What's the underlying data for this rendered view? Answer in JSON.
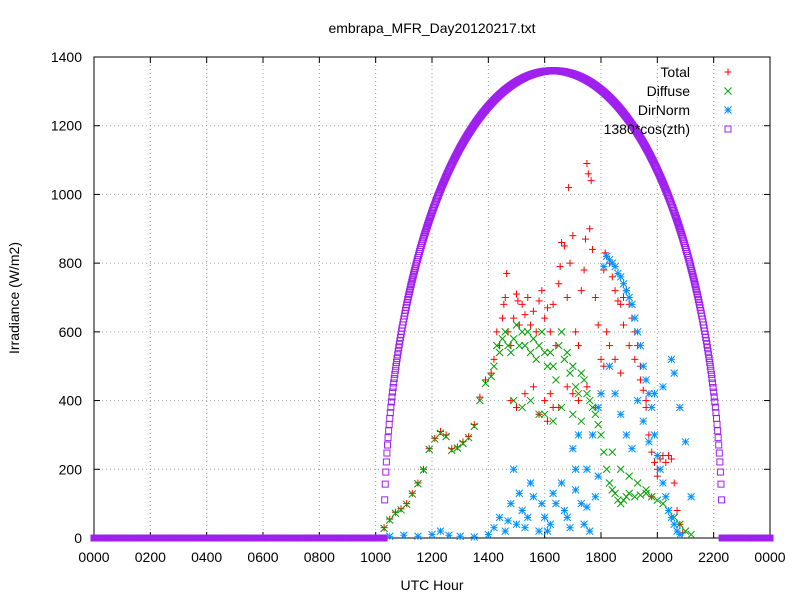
{
  "chart_data": {
    "type": "scatter",
    "title": "embrapa_MFR_Day20120217.txt",
    "xlabel": "UTC Hour",
    "ylabel": "Irradiance (W/m2)",
    "xlim": [
      0,
      24
    ],
    "ylim": [
      0,
      1400
    ],
    "x_ticks": [
      "0000",
      "0200",
      "0400",
      "0600",
      "0800",
      "1000",
      "1200",
      "1400",
      "1600",
      "1800",
      "2000",
      "2200",
      "0000"
    ],
    "y_ticks": [
      "0",
      "200",
      "400",
      "600",
      "800",
      "1000",
      "1200",
      "1400"
    ],
    "grid": true,
    "legend_position": "top-right",
    "series": [
      {
        "name": "Total",
        "marker": "plus",
        "color": "#ff0000",
        "points": [
          [
            10.3,
            30
          ],
          [
            10.5,
            55
          ],
          [
            10.7,
            75
          ],
          [
            10.9,
            85
          ],
          [
            11.1,
            100
          ],
          [
            11.3,
            130
          ],
          [
            11.5,
            160
          ],
          [
            11.7,
            200
          ],
          [
            11.9,
            260
          ],
          [
            12.1,
            290
          ],
          [
            12.3,
            310
          ],
          [
            12.5,
            300
          ],
          [
            12.7,
            260
          ],
          [
            12.9,
            265
          ],
          [
            13.1,
            280
          ],
          [
            13.3,
            295
          ],
          [
            13.5,
            330
          ],
          [
            13.7,
            410
          ],
          [
            13.9,
            460
          ],
          [
            14.1,
            480
          ],
          [
            14.2,
            520
          ],
          [
            14.3,
            600
          ],
          [
            14.4,
            560
          ],
          [
            14.5,
            640
          ],
          [
            14.55,
            680
          ],
          [
            14.6,
            700
          ],
          [
            14.65,
            770
          ],
          [
            14.7,
            600
          ],
          [
            14.8,
            560
          ],
          [
            14.9,
            640
          ],
          [
            15.0,
            710
          ],
          [
            15.05,
            690
          ],
          [
            15.1,
            620
          ],
          [
            15.2,
            680
          ],
          [
            15.3,
            650
          ],
          [
            15.4,
            700
          ],
          [
            15.5,
            620
          ],
          [
            15.6,
            660
          ],
          [
            15.7,
            600
          ],
          [
            15.8,
            690
          ],
          [
            15.9,
            720
          ],
          [
            16.0,
            640
          ],
          [
            16.1,
            670
          ],
          [
            16.2,
            600
          ],
          [
            16.3,
            680
          ],
          [
            16.4,
            560
          ],
          [
            16.5,
            740
          ],
          [
            16.55,
            790
          ],
          [
            16.6,
            860
          ],
          [
            16.7,
            850
          ],
          [
            16.8,
            700
          ],
          [
            16.85,
            1020
          ],
          [
            16.9,
            800
          ],
          [
            17.0,
            880
          ],
          [
            17.1,
            600
          ],
          [
            17.2,
            560
          ],
          [
            17.3,
            720
          ],
          [
            17.4,
            780
          ],
          [
            17.45,
            870
          ],
          [
            17.5,
            1090
          ],
          [
            17.55,
            1060
          ],
          [
            17.6,
            900
          ],
          [
            17.65,
            1040
          ],
          [
            17.7,
            840
          ],
          [
            17.8,
            700
          ],
          [
            17.9,
            620
          ],
          [
            18.0,
            520
          ],
          [
            16.0,
            400
          ],
          [
            16.2,
            420
          ],
          [
            16.5,
            380
          ],
          [
            16.8,
            440
          ],
          [
            17.0,
            420
          ],
          [
            17.2,
            400
          ],
          [
            17.5,
            440
          ],
          [
            17.8,
            380
          ],
          [
            14.8,
            400
          ],
          [
            15.0,
            380
          ],
          [
            15.3,
            420
          ],
          [
            15.6,
            440
          ],
          [
            15.8,
            360
          ],
          [
            16.1,
            340
          ],
          [
            16.3,
            380
          ],
          [
            18.1,
            780
          ],
          [
            18.15,
            830
          ],
          [
            18.2,
            820
          ],
          [
            18.3,
            800
          ],
          [
            18.4,
            760
          ],
          [
            18.5,
            720
          ],
          [
            18.6,
            690
          ],
          [
            18.7,
            680
          ],
          [
            18.8,
            700
          ],
          [
            18.9,
            720
          ],
          [
            19.0,
            680
          ],
          [
            19.1,
            640
          ],
          [
            19.2,
            600
          ],
          [
            19.3,
            560
          ],
          [
            19.4,
            500
          ],
          [
            19.5,
            430
          ],
          [
            19.6,
            380
          ],
          [
            19.7,
            300
          ],
          [
            19.8,
            250
          ],
          [
            19.9,
            220
          ],
          [
            20.0,
            200
          ],
          [
            20.1,
            230
          ],
          [
            20.2,
            240
          ],
          [
            20.3,
            220
          ],
          [
            20.4,
            240
          ],
          [
            20.5,
            230
          ],
          [
            20.6,
            160
          ],
          [
            20.7,
            80
          ],
          [
            20.8,
            40
          ],
          [
            20.9,
            15
          ],
          [
            18.0,
            420
          ],
          [
            18.1,
            500
          ],
          [
            18.2,
            600
          ],
          [
            18.3,
            560
          ],
          [
            18.5,
            520
          ],
          [
            18.7,
            480
          ],
          [
            18.8,
            620
          ],
          [
            19.0,
            560
          ],
          [
            19.2,
            520
          ],
          [
            19.4,
            460
          ],
          [
            19.6,
            400
          ],
          [
            19.8,
            120
          ],
          [
            20.0,
            180
          ]
        ]
      },
      {
        "name": "Diffuse",
        "marker": "cross",
        "color": "#00a000",
        "points": [
          [
            10.3,
            28
          ],
          [
            10.5,
            52
          ],
          [
            10.7,
            72
          ],
          [
            10.9,
            82
          ],
          [
            11.1,
            98
          ],
          [
            11.3,
            128
          ],
          [
            11.5,
            158
          ],
          [
            11.7,
            198
          ],
          [
            11.9,
            258
          ],
          [
            12.1,
            288
          ],
          [
            12.3,
            305
          ],
          [
            12.5,
            295
          ],
          [
            12.7,
            255
          ],
          [
            12.9,
            262
          ],
          [
            13.1,
            275
          ],
          [
            13.3,
            292
          ],
          [
            13.5,
            325
          ],
          [
            13.7,
            400
          ],
          [
            13.9,
            450
          ],
          [
            14.1,
            470
          ],
          [
            14.2,
            500
          ],
          [
            14.3,
            560
          ],
          [
            14.4,
            540
          ],
          [
            14.5,
            580
          ],
          [
            14.6,
            600
          ],
          [
            14.7,
            560
          ],
          [
            14.8,
            540
          ],
          [
            14.9,
            580
          ],
          [
            15.0,
            620
          ],
          [
            15.1,
            560
          ],
          [
            15.2,
            600
          ],
          [
            15.3,
            560
          ],
          [
            15.4,
            600
          ],
          [
            15.5,
            540
          ],
          [
            15.6,
            580
          ],
          [
            15.7,
            520
          ],
          [
            15.8,
            560
          ],
          [
            15.9,
            600
          ],
          [
            16.0,
            540
          ],
          [
            16.1,
            500
          ],
          [
            16.2,
            540
          ],
          [
            16.3,
            500
          ],
          [
            16.4,
            460
          ],
          [
            16.5,
            560
          ],
          [
            16.6,
            600
          ],
          [
            16.7,
            520
          ],
          [
            16.8,
            540
          ],
          [
            16.9,
            480
          ],
          [
            17.0,
            500
          ],
          [
            17.1,
            440
          ],
          [
            17.2,
            420
          ],
          [
            17.3,
            480
          ],
          [
            17.4,
            460
          ],
          [
            17.5,
            420
          ],
          [
            17.6,
            400
          ],
          [
            17.7,
            380
          ],
          [
            17.8,
            360
          ],
          [
            17.9,
            330
          ],
          [
            18.0,
            300
          ],
          [
            16.0,
            360
          ],
          [
            16.3,
            340
          ],
          [
            16.6,
            380
          ],
          [
            17.0,
            360
          ],
          [
            17.3,
            340
          ],
          [
            14.9,
            400
          ],
          [
            15.2,
            380
          ],
          [
            15.5,
            400
          ],
          [
            15.8,
            360
          ],
          [
            18.1,
            250
          ],
          [
            18.2,
            200
          ],
          [
            18.3,
            160
          ],
          [
            18.4,
            140
          ],
          [
            18.5,
            130
          ],
          [
            18.6,
            110
          ],
          [
            18.7,
            100
          ],
          [
            18.8,
            110
          ],
          [
            18.9,
            120
          ],
          [
            19.0,
            130
          ],
          [
            19.2,
            120
          ],
          [
            19.4,
            125
          ],
          [
            19.6,
            130
          ],
          [
            19.8,
            120
          ],
          [
            20.0,
            110
          ],
          [
            20.2,
            100
          ],
          [
            20.4,
            80
          ],
          [
            20.6,
            60
          ],
          [
            20.8,
            40
          ],
          [
            21.0,
            20
          ],
          [
            21.2,
            10
          ],
          [
            18.4,
            250
          ],
          [
            18.7,
            200
          ],
          [
            19.0,
            180
          ],
          [
            19.3,
            160
          ],
          [
            19.6,
            140
          ]
        ]
      },
      {
        "name": "DirNorm",
        "marker": "star",
        "color": "#0090ff",
        "points": [
          [
            10.5,
            5
          ],
          [
            11.0,
            8
          ],
          [
            11.5,
            5
          ],
          [
            12.0,
            10
          ],
          [
            12.3,
            20
          ],
          [
            12.6,
            8
          ],
          [
            13.0,
            5
          ],
          [
            13.5,
            3
          ],
          [
            14.0,
            10
          ],
          [
            14.2,
            30
          ],
          [
            14.4,
            60
          ],
          [
            14.6,
            20
          ],
          [
            14.8,
            100
          ],
          [
            14.9,
            200
          ],
          [
            15.0,
            40
          ],
          [
            15.2,
            80
          ],
          [
            15.4,
            60
          ],
          [
            15.6,
            120
          ],
          [
            15.8,
            20
          ],
          [
            16.0,
            60
          ],
          [
            16.2,
            40
          ],
          [
            16.4,
            100
          ],
          [
            16.6,
            160
          ],
          [
            16.8,
            60
          ],
          [
            17.0,
            260
          ],
          [
            17.1,
            200
          ],
          [
            17.2,
            300
          ],
          [
            17.3,
            100
          ],
          [
            17.4,
            40
          ],
          [
            17.5,
            200
          ],
          [
            17.6,
            20
          ],
          [
            17.7,
            300
          ],
          [
            17.8,
            120
          ],
          [
            17.9,
            380
          ],
          [
            18.0,
            420
          ],
          [
            15.1,
            130
          ],
          [
            15.5,
            160
          ],
          [
            15.9,
            100
          ],
          [
            16.3,
            130
          ],
          [
            16.7,
            80
          ],
          [
            17.1,
            140
          ],
          [
            17.5,
            90
          ],
          [
            17.9,
            180
          ],
          [
            14.7,
            50
          ],
          [
            15.3,
            30
          ],
          [
            16.1,
            20
          ],
          [
            16.9,
            30
          ],
          [
            18.1,
            790
          ],
          [
            18.2,
            820
          ],
          [
            18.3,
            810
          ],
          [
            18.4,
            800
          ],
          [
            18.5,
            790
          ],
          [
            18.6,
            770
          ],
          [
            18.7,
            760
          ],
          [
            18.8,
            740
          ],
          [
            18.9,
            720
          ],
          [
            19.0,
            700
          ],
          [
            19.1,
            680
          ],
          [
            19.2,
            640
          ],
          [
            19.3,
            600
          ],
          [
            19.4,
            560
          ],
          [
            19.5,
            500
          ],
          [
            19.6,
            460
          ],
          [
            19.7,
            420
          ],
          [
            19.8,
            380
          ],
          [
            19.9,
            300
          ],
          [
            20.0,
            240
          ],
          [
            20.1,
            200
          ],
          [
            20.2,
            160
          ],
          [
            20.3,
            120
          ],
          [
            20.4,
            80
          ],
          [
            20.5,
            60
          ],
          [
            20.6,
            40
          ],
          [
            20.7,
            20
          ],
          [
            20.8,
            10
          ],
          [
            18.3,
            500
          ],
          [
            18.5,
            420
          ],
          [
            18.7,
            360
          ],
          [
            18.9,
            300
          ],
          [
            19.1,
            260
          ],
          [
            19.3,
            400
          ],
          [
            19.5,
            340
          ],
          [
            19.7,
            280
          ],
          [
            19.9,
            420
          ],
          [
            20.2,
            440
          ],
          [
            20.5,
            520
          ],
          [
            20.6,
            480
          ],
          [
            20.8,
            380
          ],
          [
            21.0,
            280
          ],
          [
            21.2,
            120
          ]
        ]
      },
      {
        "name": "1380*cos(zth)",
        "marker": "square",
        "color": "#a020f0",
        "formula": "1360*sqrt(1-((x-16.3)/6)^2)",
        "peak": 1360,
        "peak_x": 16.3,
        "sunrise": 10.3,
        "sunset": 22.3
      }
    ]
  }
}
